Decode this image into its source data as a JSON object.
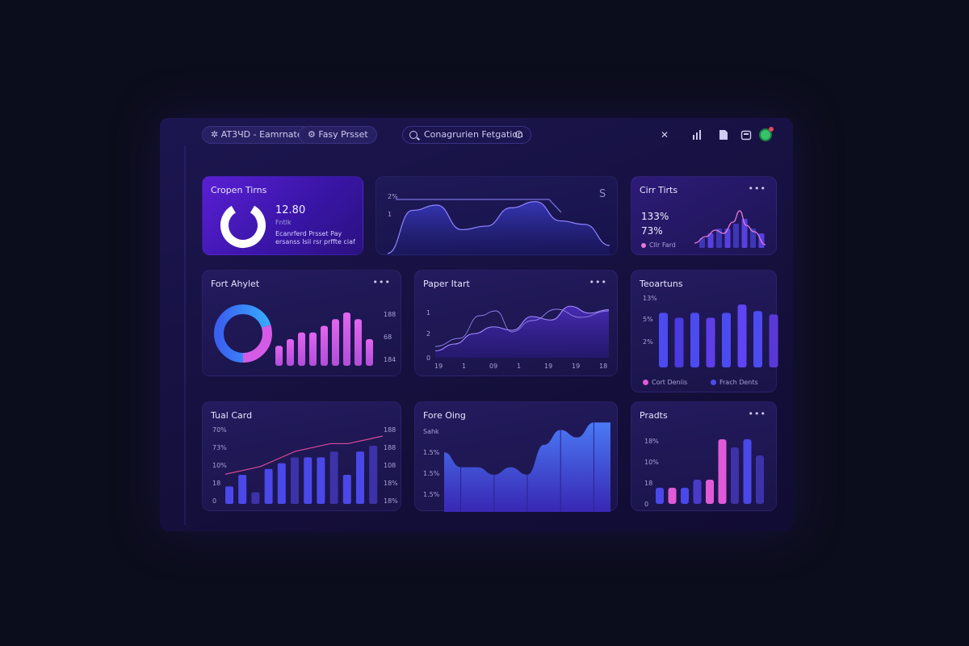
{
  "header": {
    "project_label": "AT3ЧD - Eamrnate",
    "preset_label": "Fasy Prsset",
    "search_value": "Conagrurien Fetgation"
  },
  "cards": {
    "c1": {
      "title": "Cropen Tirns",
      "value": "12.80",
      "sub": "Fntlk",
      "note1": "Ecanrferd Prsset Pay",
      "note2": "ersanss Isil rsr prffte ciaf"
    },
    "c2": {
      "tick_top": "2%",
      "tick_mid": "1",
      "corner": "S"
    },
    "c3": {
      "title": "Cirr Tirts",
      "value1": "133%",
      "value2": "73%",
      "legend": "Cllr Fard"
    },
    "c4": {
      "title": "Fort Ahylet",
      "ticks": [
        "188",
        "68",
        "184"
      ]
    },
    "c5": {
      "title": "Paper Itart",
      "yticks": [
        "1",
        "2",
        "0"
      ],
      "xticks": [
        "19",
        "1",
        "09",
        "1",
        "19",
        "19",
        "18"
      ]
    },
    "c6": {
      "title": "Teoartuns",
      "yticks": [
        "13%",
        "5%",
        "2%"
      ],
      "legend1": "Cort Deniis",
      "legend2": "Frach Dents"
    },
    "c7": {
      "title": "Tual Card",
      "yticks": [
        "70%",
        "73%",
        "10%",
        "18",
        "0"
      ],
      "rticks": [
        "188",
        "188",
        "108",
        "18%",
        "18%"
      ]
    },
    "c8": {
      "title": "Fore Oing",
      "yticks": [
        "Sahk",
        "1.5%",
        "1.5%",
        "1.5%"
      ]
    },
    "c9": {
      "title": "Pradts",
      "yticks": [
        "18%",
        "10%",
        "18",
        "0"
      ]
    }
  },
  "colors": {
    "accent_purple": "#6a2ff0",
    "magenta": "#d24ee8",
    "blue": "#4b4bf0",
    "cyan": "#3aa0ff"
  },
  "chart_data": [
    {
      "type": "area",
      "card": "c2",
      "values": [
        3,
        52,
        58,
        30,
        34,
        55,
        62,
        40,
        36,
        12
      ]
    },
    {
      "type": "bar",
      "card": "c3",
      "values": [
        2,
        3,
        4,
        4,
        5,
        6,
        4,
        3
      ]
    },
    {
      "type": "pie",
      "card": "c4",
      "values": [
        70,
        30
      ]
    },
    {
      "type": "bar",
      "card": "c4",
      "values": [
        3,
        4,
        5,
        5,
        6,
        7,
        8,
        7,
        4
      ]
    },
    {
      "type": "area",
      "card": "c5",
      "values": [
        10,
        20,
        35,
        45,
        40,
        60,
        55,
        75,
        65,
        70
      ]
    },
    {
      "type": "bar",
      "card": "c6",
      "values": [
        66,
        60,
        66,
        60,
        66,
        76,
        68,
        64
      ]
    },
    {
      "type": "bar",
      "card": "c7",
      "values": [
        3,
        5,
        2,
        6,
        7,
        8,
        8,
        8,
        9,
        5,
        9,
        10
      ]
    },
    {
      "type": "line",
      "card": "c7",
      "values": [
        1,
        2,
        3,
        5,
        7,
        8,
        9,
        9,
        10,
        11
      ]
    },
    {
      "type": "area",
      "card": "c8",
      "values": [
        8,
        6,
        6,
        5,
        6,
        5,
        9,
        11,
        10,
        12,
        12
      ]
    },
    {
      "type": "bar",
      "card": "c9",
      "values": [
        2,
        2,
        2,
        3,
        3,
        8,
        7,
        8,
        6
      ]
    }
  ]
}
